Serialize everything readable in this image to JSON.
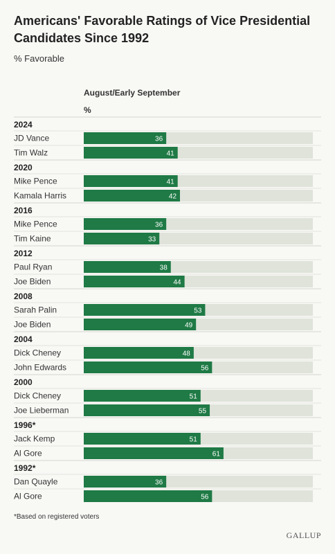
{
  "title": "Americans' Favorable Ratings of Vice Presidential Candidates Since 1992",
  "subtitle": "% Favorable",
  "column_header": "August/Early September",
  "column_unit": "%",
  "footnote": "*Based on registered voters",
  "logo_text": "GALLUP",
  "colors": {
    "bar": "#1f7a45",
    "track": "#dfe3da",
    "value_text": "#ffffff"
  },
  "chart_data": {
    "type": "bar",
    "orientation": "horizontal",
    "xlim": [
      0,
      100
    ],
    "groups": [
      {
        "label": "2024",
        "rows": [
          {
            "name": "JD Vance",
            "value": 36
          },
          {
            "name": "Tim Walz",
            "value": 41
          }
        ]
      },
      {
        "label": "2020",
        "rows": [
          {
            "name": "Mike Pence",
            "value": 41
          },
          {
            "name": "Kamala Harris",
            "value": 42
          }
        ]
      },
      {
        "label": "2016",
        "rows": [
          {
            "name": "Mike Pence",
            "value": 36
          },
          {
            "name": "Tim Kaine",
            "value": 33
          }
        ]
      },
      {
        "label": "2012",
        "rows": [
          {
            "name": "Paul Ryan",
            "value": 38
          },
          {
            "name": "Joe Biden",
            "value": 44
          }
        ]
      },
      {
        "label": "2008",
        "rows": [
          {
            "name": "Sarah Palin",
            "value": 53
          },
          {
            "name": "Joe Biden",
            "value": 49
          }
        ]
      },
      {
        "label": "2004",
        "rows": [
          {
            "name": "Dick Cheney",
            "value": 48
          },
          {
            "name": "John Edwards",
            "value": 56
          }
        ]
      },
      {
        "label": "2000",
        "rows": [
          {
            "name": "Dick Cheney",
            "value": 51
          },
          {
            "name": "Joe Lieberman",
            "value": 55
          }
        ]
      },
      {
        "label": "1996*",
        "rows": [
          {
            "name": "Jack Kemp",
            "value": 51
          },
          {
            "name": "Al Gore",
            "value": 61
          }
        ]
      },
      {
        "label": "1992*",
        "rows": [
          {
            "name": "Dan Quayle",
            "value": 36
          },
          {
            "name": "Al Gore",
            "value": 56
          }
        ]
      }
    ]
  }
}
